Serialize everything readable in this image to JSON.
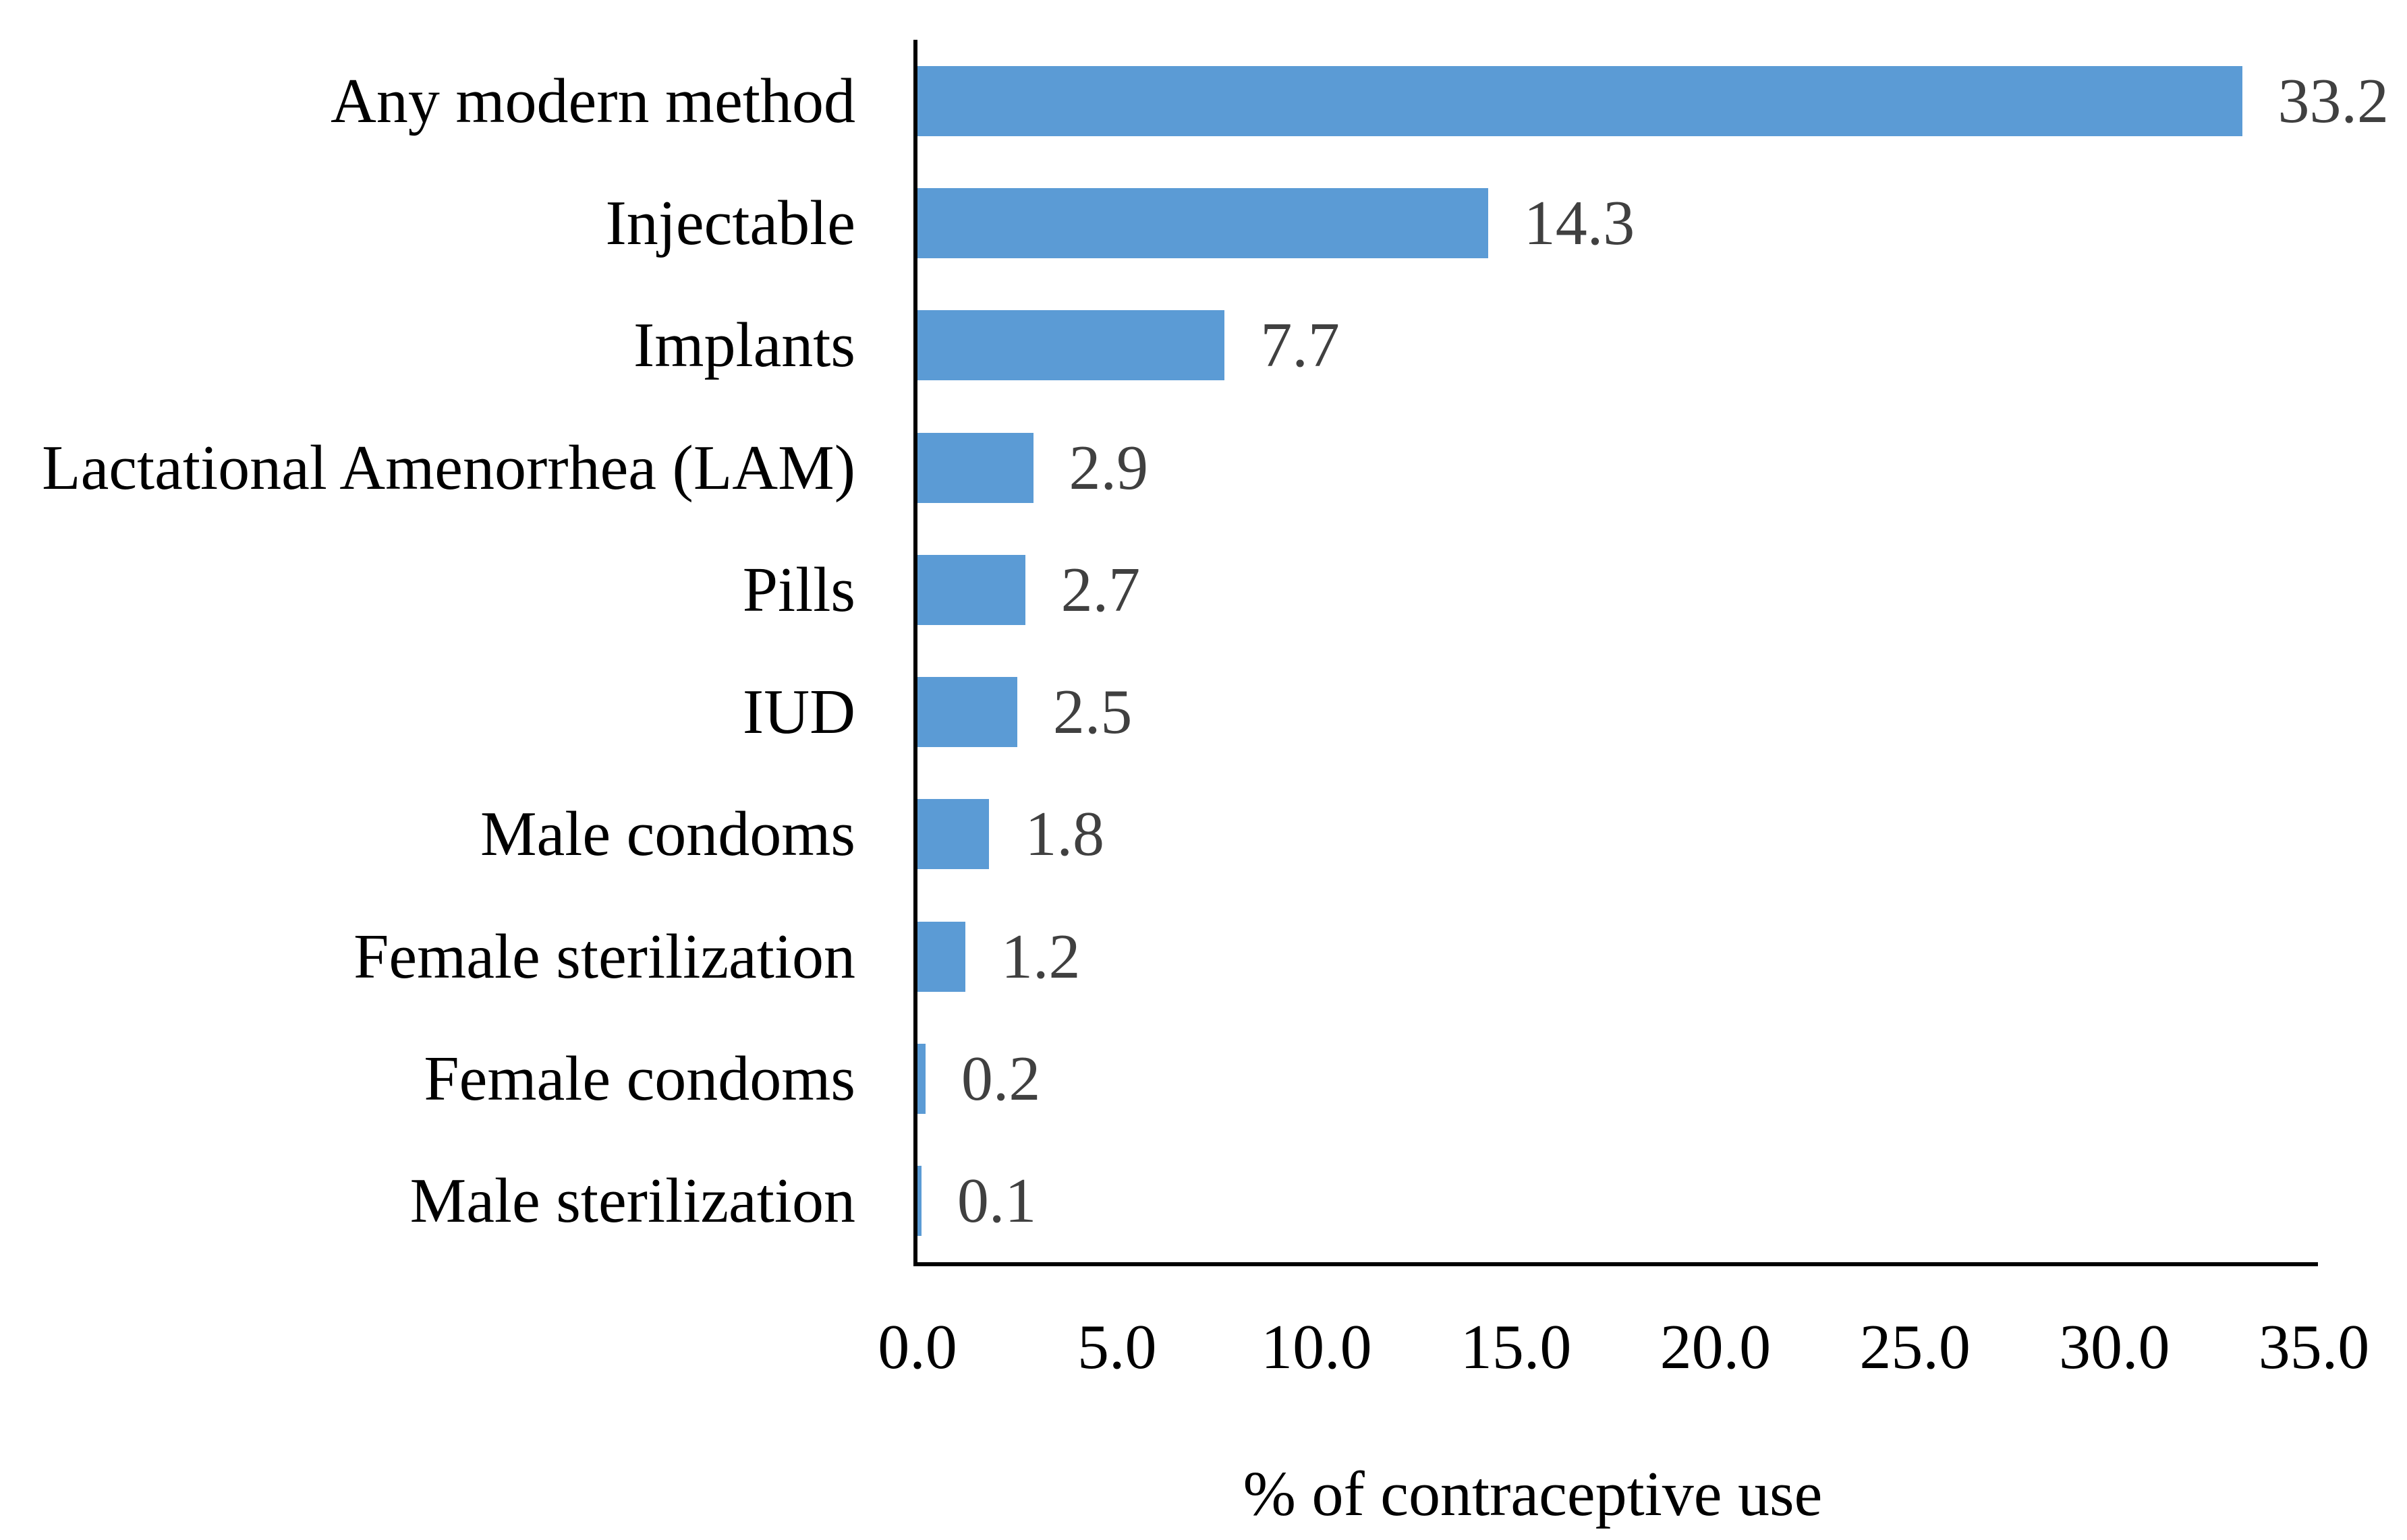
{
  "figure": {
    "background": "#ffffff"
  },
  "chart_data": {
    "type": "bar",
    "orientation": "horizontal",
    "title": "",
    "xlabel": "% of contraceptive use",
    "ylabel": "",
    "categories": [
      "Any modern method",
      "Injectable",
      "Implants",
      "Lactational Amenorrhea (LAM)",
      "Pills",
      "IUD",
      "Male condoms",
      "Female sterilization",
      "Female condoms",
      "Male sterilization"
    ],
    "values": [
      33.2,
      14.3,
      7.7,
      2.9,
      2.7,
      2.5,
      1.8,
      1.2,
      0.2,
      0.1
    ],
    "data_labels": [
      "33.2",
      "14.3",
      "7.7",
      "2.9",
      "2.7",
      "2.5",
      "1.8",
      "1.2",
      "0.2",
      "0.1"
    ],
    "xlim": [
      0,
      35
    ],
    "xticks": [
      0,
      5,
      10,
      15,
      20,
      25,
      30,
      35
    ],
    "xtick_labels": [
      "0.0",
      "5.0",
      "10.0",
      "15.0",
      "20.0",
      "25.0",
      "30.0",
      "35.0"
    ],
    "grid": "off",
    "legend": "none",
    "bar_color": "#5b9bd5",
    "value_label_color": "#404040",
    "axis_color": "#000000",
    "text_color": "#000000"
  }
}
